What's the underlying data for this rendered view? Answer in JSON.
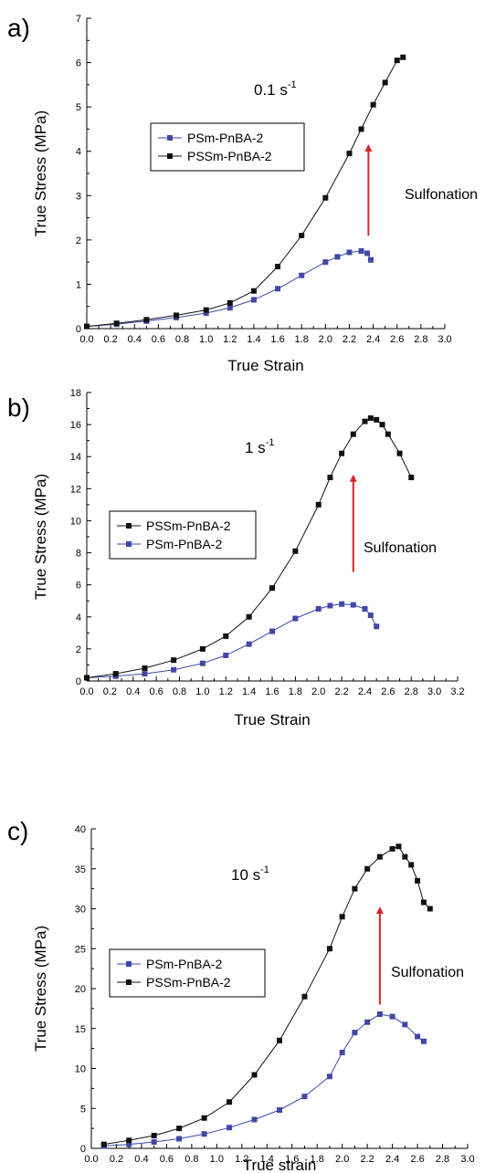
{
  "chart_data": [
    {
      "type": "line",
      "panel_label": "a)",
      "rate_text": "0.1 s",
      "rate_sup": "-1",
      "xlabel": "True Strain",
      "ylabel": "True Stress (MPa)",
      "xlim": [
        0,
        3.0
      ],
      "ylim": [
        0,
        7
      ],
      "x_ticks": [
        0,
        0.2,
        0.4,
        0.6,
        0.8,
        1.0,
        1.2,
        1.4,
        1.6,
        1.8,
        2.0,
        2.2,
        2.4,
        2.6,
        2.8,
        3.0
      ],
      "x_tick_labels": [
        "0.0",
        "0.2",
        "0.4",
        "0.6",
        "0.8",
        "1.0",
        "1.2",
        "1.4",
        "1.6",
        "1.8",
        "2.0",
        "2.2",
        "2.4",
        "2.6",
        "2.8",
        "3.0"
      ],
      "y_ticks": [
        0,
        1,
        2,
        3,
        4,
        5,
        6,
        7
      ],
      "y_tick_labels": [
        "0",
        "1",
        "2",
        "3",
        "4",
        "5",
        "6",
        "7"
      ],
      "legend_order": [
        0,
        1
      ],
      "annotation": {
        "text": "Sulfonation",
        "arrow_x": 2.36,
        "arrow_y_from": 2.1,
        "arrow_y_to": 4.2,
        "color": "#d62728"
      },
      "series": [
        {
          "name": "PSm-PnBA-2",
          "color": "#3f48a8",
          "x": [
            0,
            0.25,
            0.5,
            0.75,
            1.0,
            1.2,
            1.4,
            1.6,
            1.8,
            2.0,
            2.1,
            2.2,
            2.3,
            2.35,
            2.38
          ],
          "y": [
            0.05,
            0.1,
            0.17,
            0.25,
            0.35,
            0.47,
            0.65,
            0.9,
            1.2,
            1.5,
            1.62,
            1.72,
            1.75,
            1.7,
            1.55
          ]
        },
        {
          "name": "PSSm-PnBA-2",
          "color": "#111111",
          "x": [
            0,
            0.25,
            0.5,
            0.75,
            1.0,
            1.2,
            1.4,
            1.6,
            1.8,
            2.0,
            2.2,
            2.3,
            2.4,
            2.5,
            2.6,
            2.65
          ],
          "y": [
            0.05,
            0.12,
            0.2,
            0.3,
            0.42,
            0.58,
            0.85,
            1.4,
            2.1,
            2.95,
            3.95,
            4.5,
            5.05,
            5.55,
            6.05,
            6.12
          ]
        }
      ]
    },
    {
      "type": "line",
      "panel_label": "b)",
      "rate_text": "1 s",
      "rate_sup": "-1",
      "xlabel": "True Strain",
      "ylabel": "True Stress (MPa)",
      "xlim": [
        0,
        3.2
      ],
      "ylim": [
        0,
        18
      ],
      "x_ticks": [
        0,
        0.2,
        0.4,
        0.6,
        0.8,
        1.0,
        1.2,
        1.4,
        1.6,
        1.8,
        2.0,
        2.2,
        2.4,
        2.6,
        2.8,
        3.0,
        3.2
      ],
      "x_tick_labels": [
        "0.0",
        "0.2",
        "0.4",
        "0.6",
        "0.8",
        "1.0",
        "1.2",
        "1.4",
        "1.6",
        "1.8",
        "2.0",
        "2.2",
        "2.4",
        "2.6",
        "2.8",
        "3.0",
        "3.2"
      ],
      "y_ticks": [
        0,
        2,
        4,
        6,
        8,
        10,
        12,
        14,
        16,
        18
      ],
      "y_tick_labels": [
        "0",
        "2",
        "4",
        "6",
        "8",
        "10",
        "12",
        "14",
        "16",
        "18"
      ],
      "legend_order": [
        1,
        0
      ],
      "annotation": {
        "text": "Sulfonation",
        "arrow_x": 2.3,
        "arrow_y_from": 6.8,
        "arrow_y_to": 13.0,
        "color": "#d62728"
      },
      "series": [
        {
          "name": "PSm-PnBA-2",
          "color": "#3f48a8",
          "x": [
            0,
            0.25,
            0.5,
            0.75,
            1.0,
            1.2,
            1.4,
            1.6,
            1.8,
            2.0,
            2.1,
            2.2,
            2.3,
            2.4,
            2.45,
            2.5
          ],
          "y": [
            0.2,
            0.3,
            0.45,
            0.7,
            1.1,
            1.6,
            2.3,
            3.1,
            3.9,
            4.5,
            4.7,
            4.8,
            4.75,
            4.5,
            4.1,
            3.4
          ]
        },
        {
          "name": "PSSm-PnBA-2",
          "color": "#111111",
          "x": [
            0,
            0.25,
            0.5,
            0.75,
            1.0,
            1.2,
            1.4,
            1.6,
            1.8,
            2.0,
            2.1,
            2.2,
            2.3,
            2.4,
            2.45,
            2.5,
            2.55,
            2.6,
            2.7,
            2.8
          ],
          "y": [
            0.2,
            0.45,
            0.8,
            1.3,
            2.0,
            2.8,
            4.0,
            5.8,
            8.1,
            11.0,
            12.7,
            14.2,
            15.4,
            16.2,
            16.4,
            16.3,
            16.0,
            15.4,
            14.2,
            12.7
          ]
        }
      ]
    },
    {
      "type": "line",
      "panel_label": "c)",
      "rate_text": "10 s",
      "rate_sup": "-1",
      "xlabel": "True strain",
      "ylabel": "True Stress (MPa)",
      "xlim": [
        0,
        3.0
      ],
      "ylim": [
        0,
        40
      ],
      "x_ticks": [
        0,
        0.2,
        0.4,
        0.6,
        0.8,
        1.0,
        1.2,
        1.4,
        1.6,
        1.8,
        2.0,
        2.2,
        2.4,
        2.6,
        2.8,
        3.0
      ],
      "x_tick_labels": [
        "0.0",
        "0.2",
        "0.4",
        "0.6",
        "0.8",
        "1.0",
        "1.2",
        "1.4",
        "1.6",
        "1.8",
        "2.0",
        "2.2",
        "2.4",
        "2.6",
        "2.8",
        "3.0"
      ],
      "y_ticks": [
        0,
        5,
        10,
        15,
        20,
        25,
        30,
        35,
        40
      ],
      "y_tick_labels": [
        "0",
        "5",
        "10",
        "15",
        "20",
        "25",
        "30",
        "35",
        "40"
      ],
      "legend_order": [
        0,
        1
      ],
      "annotation": {
        "text": "Sulfonation",
        "arrow_x": 2.3,
        "arrow_y_from": 18.0,
        "arrow_y_to": 30.5,
        "color": "#d62728"
      },
      "series": [
        {
          "name": "PSm-PnBA-2",
          "color": "#3f48a8",
          "x": [
            0.1,
            0.3,
            0.5,
            0.7,
            0.9,
            1.1,
            1.3,
            1.5,
            1.7,
            1.9,
            2.0,
            2.1,
            2.2,
            2.3,
            2.4,
            2.5,
            2.6,
            2.65
          ],
          "y": [
            0.3,
            0.5,
            0.8,
            1.2,
            1.8,
            2.6,
            3.6,
            4.8,
            6.5,
            9.0,
            12.0,
            14.5,
            15.8,
            16.8,
            16.5,
            15.5,
            14.0,
            13.4
          ]
        },
        {
          "name": "PSSm-PnBA-2",
          "color": "#111111",
          "x": [
            0.1,
            0.3,
            0.5,
            0.7,
            0.9,
            1.1,
            1.3,
            1.5,
            1.7,
            1.9,
            2.0,
            2.1,
            2.2,
            2.3,
            2.4,
            2.45,
            2.5,
            2.55,
            2.6,
            2.65,
            2.7
          ],
          "y": [
            0.5,
            1.0,
            1.6,
            2.5,
            3.8,
            5.8,
            9.2,
            13.5,
            19.0,
            25.0,
            29.0,
            32.5,
            35.0,
            36.5,
            37.5,
            37.8,
            36.5,
            35.5,
            33.5,
            30.8,
            30.0
          ]
        }
      ]
    }
  ]
}
